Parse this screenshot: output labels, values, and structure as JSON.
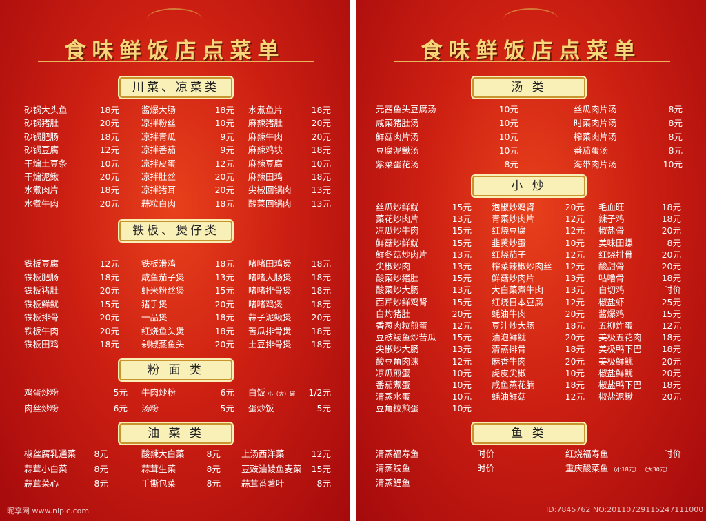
{
  "pages": [
    {
      "title": "食味鲜饭店点菜单",
      "sections": [
        {
          "heading": "川菜、凉菜类",
          "columns": [
            [
              {
                "name": "砂锅大头鱼",
                "price": "18元"
              },
              {
                "name": "砂锅猪肚",
                "price": "20元"
              },
              {
                "name": "砂锅肥肠",
                "price": "18元"
              },
              {
                "name": "砂锅豆腐",
                "price": "12元"
              },
              {
                "name": "干煸土豆条",
                "price": "10元"
              },
              {
                "name": "干煸泥鳅",
                "price": "20元"
              },
              {
                "name": "水煮肉片",
                "price": "18元"
              },
              {
                "name": "水煮牛肉",
                "price": "20元"
              }
            ],
            [
              {
                "name": "酱爆大肠",
                "price": "18元"
              },
              {
                "name": "凉拌粉丝",
                "price": "10元"
              },
              {
                "name": "凉拌青瓜",
                "price": "9元"
              },
              {
                "name": "凉拌番茄",
                "price": "9元"
              },
              {
                "name": "凉拌皮蛋",
                "price": "12元"
              },
              {
                "name": "凉拌肚丝",
                "price": "20元"
              },
              {
                "name": "凉拌猪耳",
                "price": "20元"
              },
              {
                "name": "蒜粒白肉",
                "price": "18元"
              }
            ],
            [
              {
                "name": "水煮鱼片",
                "price": "18元"
              },
              {
                "name": "麻辣猪肚",
                "price": "20元"
              },
              {
                "name": "麻辣牛肉",
                "price": "20元"
              },
              {
                "name": "麻辣鸡块",
                "price": "18元"
              },
              {
                "name": "麻辣豆腐",
                "price": "10元"
              },
              {
                "name": "麻辣田鸡",
                "price": "18元"
              },
              {
                "name": "尖椒回锅肉",
                "price": "13元"
              },
              {
                "name": "酸菜回锅肉",
                "price": "13元"
              }
            ]
          ]
        },
        {
          "heading": "铁板、煲仔类",
          "columns": [
            [
              {
                "name": "铁板豆腐",
                "price": "12元"
              },
              {
                "name": "铁板肥肠",
                "price": "18元"
              },
              {
                "name": "铁板猪肚",
                "price": "20元"
              },
              {
                "name": "铁板鲜鱿",
                "price": "15元"
              },
              {
                "name": "铁板排骨",
                "price": "20元"
              },
              {
                "name": "铁板牛肉",
                "price": "20元"
              },
              {
                "name": "铁板田鸡",
                "price": "18元"
              }
            ],
            [
              {
                "name": "铁板滑鸡",
                "price": "18元"
              },
              {
                "name": "咸鱼茄子煲",
                "price": "13元"
              },
              {
                "name": "虾米粉丝煲",
                "price": "15元"
              },
              {
                "name": "猪手煲",
                "price": "20元"
              },
              {
                "name": "一品煲",
                "price": "18元"
              },
              {
                "name": "红烧鱼头煲",
                "price": "18元"
              },
              {
                "name": "剁椒蒸鱼头",
                "price": "20元"
              }
            ],
            [
              {
                "name": "啫啫田鸡煲",
                "price": "18元"
              },
              {
                "name": "啫啫大肠煲",
                "price": "18元"
              },
              {
                "name": "啫啫排骨煲",
                "price": "18元"
              },
              {
                "name": "啫啫鸡煲",
                "price": "18元"
              },
              {
                "name": "蒜子泥鳅煲",
                "price": "20元"
              },
              {
                "name": "苦瓜排骨煲",
                "price": "18元"
              },
              {
                "name": "土豆排骨煲",
                "price": "18元"
              }
            ]
          ]
        },
        {
          "heading": "粉 面 类",
          "columns": [
            [
              {
                "name": "鸡蛋炒粉",
                "price": "5元"
              },
              {
                "name": "肉丝炒粉",
                "price": "6元"
              }
            ],
            [
              {
                "name": "牛肉炒粉",
                "price": "6元"
              },
              {
                "name": "汤粉",
                "price": "5元"
              }
            ],
            [
              {
                "name": "白饭",
                "notes": [
                  "小（大）碗"
                ],
                "price": "1/2元"
              },
              {
                "name": "蛋炒饭",
                "price": "5元"
              }
            ]
          ]
        },
        {
          "heading": "油 菜 类",
          "columns": [
            [
              {
                "name": "椒丝腐乳通菜",
                "price": "8元"
              },
              {
                "name": "蒜茸小白菜",
                "price": "8元"
              },
              {
                "name": "蒜茸菜心",
                "price": "8元"
              }
            ],
            [
              {
                "name": "酸辣大白菜",
                "price": "8元"
              },
              {
                "name": "蒜茸生菜",
                "price": "8元"
              },
              {
                "name": "手撕包菜",
                "price": "8元"
              }
            ],
            [
              {
                "name": "上汤西洋菜",
                "price": "12元"
              },
              {
                "name": "豆豉油鲮鱼麦菜",
                "price": "15元"
              },
              {
                "name": "蒜茸番薯叶",
                "price": "8元"
              }
            ]
          ]
        }
      ]
    },
    {
      "title": "食味鲜饭店点菜单",
      "sections": [
        {
          "heading": "汤 类",
          "columns": [
            [
              {
                "name": "元茜鱼头豆腐汤",
                "price": "10元"
              },
              {
                "name": "咸菜猪肚汤",
                "price": "10元"
              },
              {
                "name": "鲜菇肉片汤",
                "price": "10元"
              },
              {
                "name": "豆腐泥鳅汤",
                "price": "10元"
              },
              {
                "name": "紫菜蛋花汤",
                "price": "8元"
              }
            ],
            [
              {
                "name": "丝瓜肉片汤",
                "price": "8元"
              },
              {
                "name": "时菜肉片汤",
                "price": "8元"
              },
              {
                "name": "榨菜肉片汤",
                "price": "8元"
              },
              {
                "name": "番茄蛋汤",
                "price": "8元"
              },
              {
                "name": "海带肉片汤",
                "price": "10元"
              }
            ]
          ]
        },
        {
          "heading": "小 炒",
          "columns": [
            [
              {
                "name": "丝瓜炒鲜鱿",
                "price": "15元"
              },
              {
                "name": "菜花炒肉片",
                "price": "13元"
              },
              {
                "name": "凉瓜炒牛肉",
                "price": "15元"
              },
              {
                "name": "鲜菇炒鲜鱿",
                "price": "15元"
              },
              {
                "name": "鲜冬菇炒肉片",
                "price": "13元"
              },
              {
                "name": "尖椒炒肉",
                "price": "13元"
              },
              {
                "name": "酸菜炒猪肚",
                "price": "15元"
              },
              {
                "name": "酸菜炒大肠",
                "price": "13元"
              },
              {
                "name": "西芹炒鲜鸡肾",
                "price": "15元"
              },
              {
                "name": "白灼猪肚",
                "price": "20元"
              },
              {
                "name": "香葱肉粒煎蛋",
                "price": "12元"
              },
              {
                "name": "豆豉鲮鱼炒苦瓜",
                "price": "15元"
              },
              {
                "name": "尖椒炒大肠",
                "price": "13元"
              },
              {
                "name": "酸豆角肉沫",
                "price": "12元"
              },
              {
                "name": "凉瓜煎蛋",
                "price": "10元"
              },
              {
                "name": "番茄煮蛋",
                "price": "10元"
              },
              {
                "name": "清蒸水蛋",
                "price": "10元"
              },
              {
                "name": "豆角粒煎蛋",
                "price": "10元"
              }
            ],
            [
              {
                "name": "泡椒炒鸡肾",
                "price": "20元"
              },
              {
                "name": "青菜炒肉片",
                "price": "12元"
              },
              {
                "name": "红烧豆腐",
                "price": "12元"
              },
              {
                "name": "韭黄炒蛋",
                "price": "10元"
              },
              {
                "name": "红烧茄子",
                "price": "12元"
              },
              {
                "name": "榨菜辣椒炒肉丝",
                "price": "12元"
              },
              {
                "name": "鲜菇炒肉片",
                "price": "13元"
              },
              {
                "name": "大白菜煮牛肉",
                "price": "13元"
              },
              {
                "name": "红烧日本豆腐",
                "price": "12元"
              },
              {
                "name": "蚝油牛肉",
                "price": "20元"
              },
              {
                "name": "豆汁炒大肠",
                "price": "18元"
              },
              {
                "name": "油泡鲜鱿",
                "price": "20元"
              },
              {
                "name": "清蒸排骨",
                "price": "18元"
              },
              {
                "name": "麻香牛肉",
                "price": "20元"
              },
              {
                "name": "虎皮尖椒",
                "price": "10元"
              },
              {
                "name": "咸鱼蒸花腩",
                "price": "18元"
              },
              {
                "name": "蚝油鲜菇",
                "price": "12元"
              }
            ],
            [
              {
                "name": "毛血旺",
                "price": "18元"
              },
              {
                "name": "辣子鸡",
                "price": "18元"
              },
              {
                "name": "椒盐骨",
                "price": "20元"
              },
              {
                "name": "美味田螺",
                "price": "8元"
              },
              {
                "name": "红烧排骨",
                "price": "20元"
              },
              {
                "name": "酸甜骨",
                "price": "20元"
              },
              {
                "name": "咕噜骨",
                "price": "18元"
              },
              {
                "name": "白切鸡",
                "price": "时价"
              },
              {
                "name": "椒盐虾",
                "price": "25元"
              },
              {
                "name": "酱爆鸡",
                "price": "15元"
              },
              {
                "name": "五柳炸蛋",
                "price": "12元"
              },
              {
                "name": "美极五花肉",
                "price": "18元"
              },
              {
                "name": "美极鸭下巴",
                "price": "18元"
              },
              {
                "name": "美极鲜鱿",
                "price": "20元"
              },
              {
                "name": "椒盐鲜鱿",
                "price": "20元"
              },
              {
                "name": "椒盐鸭下巴",
                "price": "18元"
              },
              {
                "name": "椒盐泥鳅",
                "price": "20元"
              }
            ]
          ]
        },
        {
          "heading": "鱼 类",
          "columns": [
            [
              {
                "name": "清蒸福寿鱼",
                "price": "时价"
              },
              {
                "name": "清蒸鲩鱼",
                "price": "时价"
              },
              {
                "name": "清蒸鲤鱼"
              }
            ],
            [
              {
                "name": "红烧福寿鱼",
                "price": "时价"
              },
              {
                "name": "重庆酸菜鱼",
                "notes": [
                  "（小18元）",
                  "（大30元）"
                ]
              }
            ]
          ]
        }
      ]
    }
  ],
  "watermark": {
    "site": "昵享网 www.nipic.com",
    "id": "ID:7845762 NO:20110729115247111000"
  }
}
